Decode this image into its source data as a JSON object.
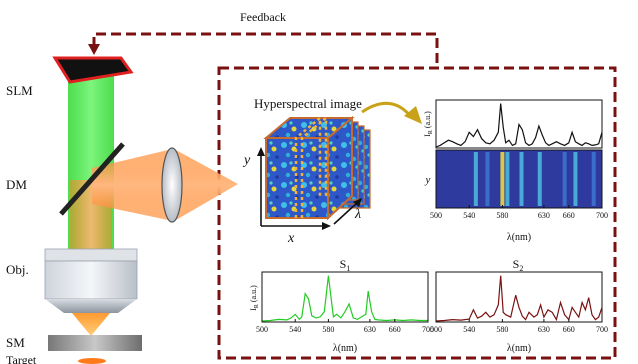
{
  "labels": {
    "feedback": "Feedback",
    "slm": "SLM",
    "dm": "DM",
    "objective": "Obj.",
    "sm": "SM",
    "target": "Target",
    "hyperspectral_image": "Hyperspectral image",
    "cube_x": "x",
    "cube_y": "y",
    "cube_lambda": "λ"
  },
  "colors": {
    "feedback_line": "#7a1010",
    "slm_frame": "#e02020",
    "green_beam": "#2ee82e",
    "orange_beam": "#ff8a2a",
    "arrow_gold": "#c9a21a",
    "s1_line": "#22cc22",
    "s2_line": "#7a1212",
    "top_line": "#111111"
  },
  "chart_data": [
    {
      "type": "line",
      "id": "top-spectrum",
      "ylabel": "I_R (a.u.)",
      "xlim": [
        500,
        700
      ],
      "x": [
        500,
        505,
        510,
        515,
        520,
        525,
        530,
        535,
        540,
        545,
        550,
        555,
        560,
        565,
        570,
        575,
        578,
        581,
        584,
        588,
        592,
        596,
        600,
        604,
        608,
        612,
        616,
        620,
        624,
        628,
        632,
        636,
        640,
        645,
        650,
        655,
        660,
        664,
        668,
        672,
        676,
        680,
        684,
        688,
        692,
        696,
        700
      ],
      "values": [
        0.02,
        0.05,
        0.1,
        0.15,
        0.12,
        0.08,
        0.05,
        0.12,
        0.3,
        0.22,
        0.35,
        0.18,
        0.1,
        0.08,
        0.15,
        0.3,
        0.85,
        0.4,
        0.1,
        0.15,
        0.05,
        0.08,
        0.45,
        0.35,
        0.1,
        0.05,
        0.08,
        0.2,
        0.42,
        0.25,
        0.1,
        0.05,
        0.08,
        0.12,
        0.08,
        0.05,
        0.1,
        0.3,
        0.12,
        0.08,
        0.05,
        0.1,
        0.08,
        0.05,
        0.06,
        0.08,
        0.3
      ]
    },
    {
      "type": "heatmap",
      "id": "spectral-map",
      "ylabel": "y",
      "xlabel": "λ(nm)",
      "xlim": [
        500,
        700
      ],
      "x_ticks": [
        500,
        540,
        580,
        630,
        660,
        700
      ],
      "bright_bands": [
        {
          "lambda": 548,
          "intensity": 0.5
        },
        {
          "lambda": 562,
          "intensity": 0.35
        },
        {
          "lambda": 580,
          "intensity": 0.95
        },
        {
          "lambda": 586,
          "intensity": 0.5
        },
        {
          "lambda": 603,
          "intensity": 0.6
        },
        {
          "lambda": 625,
          "intensity": 0.55
        },
        {
          "lambda": 655,
          "intensity": 0.35
        },
        {
          "lambda": 668,
          "intensity": 0.5
        },
        {
          "lambda": 690,
          "intensity": 0.3
        }
      ]
    },
    {
      "type": "line",
      "id": "s1",
      "title_main": "S",
      "title_sub": "1",
      "ylabel": "I_R (a.u.)",
      "xlabel": "λ(nm)",
      "xlim": [
        500,
        700
      ],
      "x_ticks": [
        500,
        540,
        580,
        630,
        660,
        700
      ],
      "x": [
        500,
        510,
        520,
        530,
        535,
        540,
        545,
        548,
        552,
        556,
        560,
        565,
        570,
        575,
        580,
        583,
        586,
        590,
        595,
        600,
        605,
        610,
        615,
        620,
        625,
        628,
        632,
        636,
        640,
        650,
        660,
        670,
        680,
        690,
        700
      ],
      "values": [
        0.02,
        0.03,
        0.05,
        0.04,
        0.08,
        0.15,
        0.05,
        0.1,
        0.55,
        0.45,
        0.12,
        0.08,
        0.1,
        0.2,
        0.9,
        0.5,
        0.1,
        0.15,
        0.08,
        0.2,
        0.35,
        0.08,
        0.05,
        0.1,
        0.15,
        0.6,
        0.2,
        0.05,
        0.04,
        0.03,
        0.04,
        0.03,
        0.04,
        0.03,
        0.03
      ]
    },
    {
      "type": "line",
      "id": "s2",
      "title_main": "S",
      "title_sub": "2",
      "xlabel": "λ(nm)",
      "xlim": [
        500,
        700
      ],
      "x_ticks": [
        500,
        540,
        580,
        630,
        660,
        700
      ],
      "x": [
        500,
        510,
        520,
        530,
        540,
        545,
        550,
        555,
        560,
        565,
        570,
        575,
        578,
        581,
        584,
        590,
        596,
        600,
        604,
        608,
        612,
        618,
        622,
        626,
        630,
        635,
        640,
        645,
        650,
        655,
        660,
        664,
        668,
        672,
        676,
        680,
        684,
        688,
        692,
        696,
        700
      ],
      "values": [
        0.02,
        0.03,
        0.05,
        0.04,
        0.06,
        0.25,
        0.08,
        0.12,
        0.2,
        0.1,
        0.15,
        0.35,
        0.95,
        0.2,
        0.15,
        0.1,
        0.55,
        0.3,
        0.12,
        0.05,
        0.2,
        0.1,
        0.15,
        0.35,
        0.1,
        0.25,
        0.2,
        0.05,
        0.4,
        0.15,
        0.05,
        0.3,
        0.2,
        0.1,
        0.4,
        0.25,
        0.5,
        0.15,
        0.05,
        0.1,
        0.3
      ]
    }
  ]
}
